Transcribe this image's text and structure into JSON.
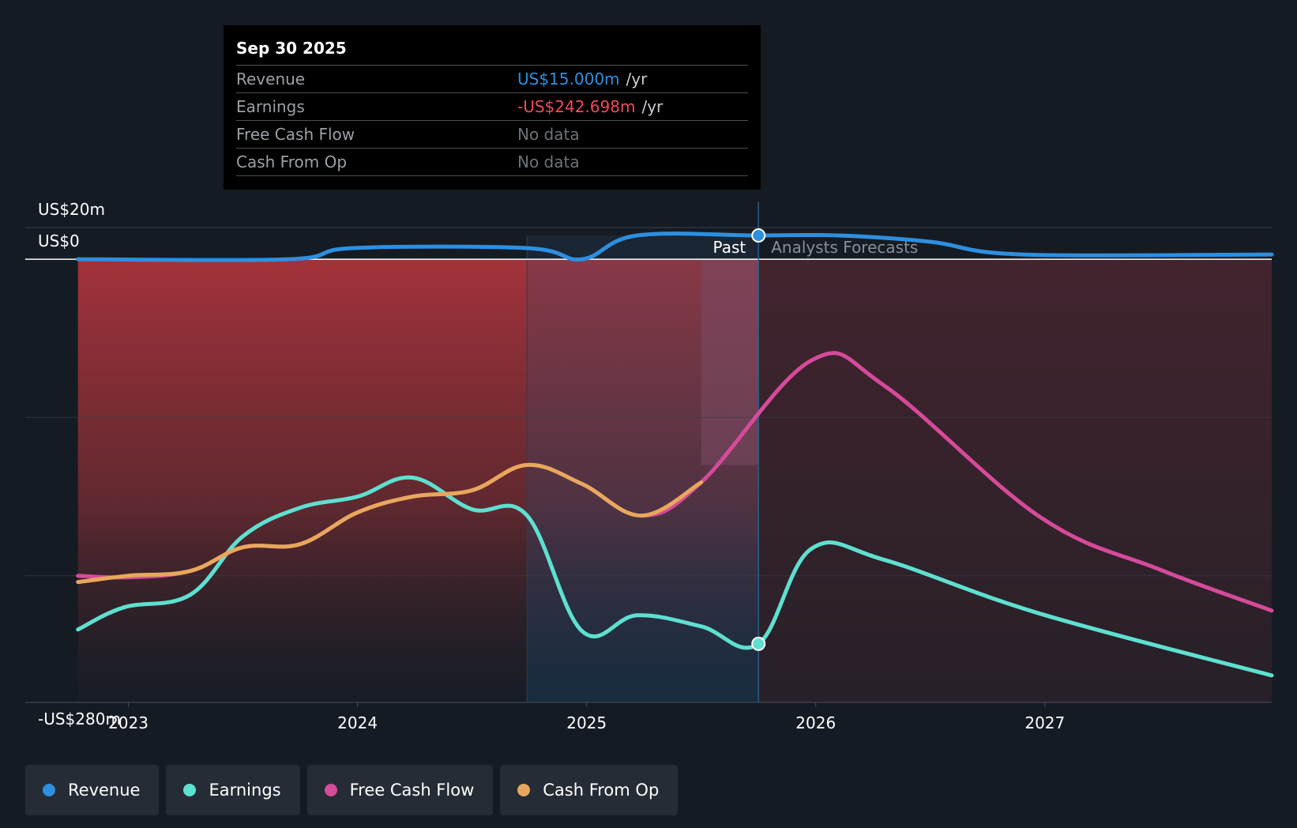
{
  "chart_data": {
    "type": "line",
    "y_axis": {
      "top_label": "US$20m",
      "zero_label": "US$0",
      "bottom_label": "-US$280m",
      "ylim": [
        -280,
        20
      ]
    },
    "x_axis": {
      "ticks": [
        "2023",
        "2024",
        "2025",
        "2026",
        "2027"
      ],
      "xlim": [
        2022.55,
        2027.99
      ]
    },
    "past_label": "Past",
    "forecast_label": "Analysts Forecasts",
    "past_end": 2025.75,
    "series": [
      {
        "name": "Revenue",
        "key": "revenue",
        "color": "#2d8fe0",
        "points": [
          [
            2022.78,
            0
          ],
          [
            2023.7,
            0
          ],
          [
            2023.98,
            7
          ],
          [
            2024.74,
            7
          ],
          [
            2024.98,
            0
          ],
          [
            2025.22,
            15
          ],
          [
            2025.75,
            15
          ],
          [
            2026.1,
            15
          ],
          [
            2026.5,
            11
          ],
          [
            2026.9,
            3
          ],
          [
            2027.99,
            3
          ]
        ]
      },
      {
        "name": "Earnings",
        "key": "earnings",
        "color": "#5ee0d0",
        "points": [
          [
            2022.78,
            -234
          ],
          [
            2022.98,
            -220
          ],
          [
            2023.27,
            -212
          ],
          [
            2023.5,
            -175
          ],
          [
            2023.75,
            -157
          ],
          [
            2024.0,
            -150
          ],
          [
            2024.24,
            -138
          ],
          [
            2024.5,
            -158
          ],
          [
            2024.74,
            -162
          ],
          [
            2024.98,
            -235
          ],
          [
            2025.22,
            -225
          ],
          [
            2025.5,
            -232
          ],
          [
            2025.75,
            -243
          ],
          [
            2025.98,
            -183
          ],
          [
            2026.3,
            -190
          ],
          [
            2026.98,
            -224
          ],
          [
            2027.99,
            -263
          ]
        ]
      },
      {
        "name": "Free Cash Flow",
        "key": "fcf",
        "color": "#d64a9a",
        "points": [
          [
            2022.78,
            -200
          ],
          [
            2023.0,
            -201
          ],
          [
            2023.27,
            -197
          ],
          [
            2023.5,
            -182
          ],
          [
            2023.75,
            -180
          ],
          [
            2024.0,
            -160
          ],
          [
            2024.24,
            -150
          ],
          [
            2024.5,
            -146
          ],
          [
            2024.74,
            -130
          ],
          [
            2024.98,
            -142
          ],
          [
            2025.24,
            -162
          ],
          [
            2025.5,
            -141
          ],
          [
            2025.98,
            -64
          ],
          [
            2026.3,
            -80
          ],
          [
            2026.98,
            -163
          ],
          [
            2027.5,
            -196
          ],
          [
            2027.99,
            -222
          ]
        ]
      },
      {
        "name": "Cash From Op",
        "key": "cfo",
        "color": "#e8a85c",
        "points": [
          [
            2022.78,
            -204
          ],
          [
            2023.0,
            -200
          ],
          [
            2023.27,
            -197
          ],
          [
            2023.5,
            -182
          ],
          [
            2023.75,
            -180
          ],
          [
            2024.0,
            -160
          ],
          [
            2024.24,
            -150
          ],
          [
            2024.5,
            -146
          ],
          [
            2024.74,
            -130
          ],
          [
            2024.98,
            -142
          ],
          [
            2025.24,
            -162
          ],
          [
            2025.5,
            -141
          ]
        ]
      }
    ]
  },
  "tooltip": {
    "date": "Sep 30 2025",
    "rows": [
      {
        "label": "Revenue",
        "value": "US$15.000m",
        "unit": "/yr",
        "color": "#2d8fe0"
      },
      {
        "label": "Earnings",
        "value": "-US$242.698m",
        "unit": "/yr",
        "color": "#ef4b5a"
      },
      {
        "label": "Free Cash Flow",
        "value": "No data",
        "unit": ""
      },
      {
        "label": "Cash From Op",
        "value": "No data",
        "unit": ""
      }
    ]
  },
  "legend": [
    {
      "label": "Revenue",
      "color": "#2d8fe0"
    },
    {
      "label": "Earnings",
      "color": "#5ee0d0"
    },
    {
      "label": "Free Cash Flow",
      "color": "#d64a9a"
    },
    {
      "label": "Cash From Op",
      "color": "#e8a85c"
    }
  ]
}
